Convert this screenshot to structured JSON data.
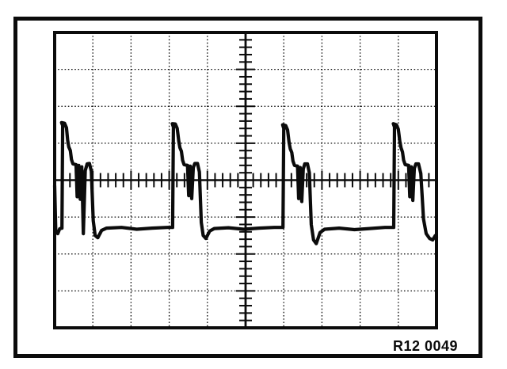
{
  "figure": {
    "label": "R12 0049",
    "background": "#ffffff",
    "ink_color": "#0b0b0b"
  },
  "chart_data": {
    "type": "line",
    "title": "",
    "xlabel": "",
    "ylabel": "",
    "x_range": [
      0,
      10
    ],
    "y_range": [
      0,
      8
    ],
    "grid": {
      "cols": 10,
      "rows": 8,
      "minor_per_div": 5,
      "style": "dotted",
      "center_axes": true
    },
    "legend": "none",
    "annotations": [
      {
        "text": "R12 0049",
        "position": "bottom-right"
      }
    ],
    "series": [
      {
        "name": "oscilloscope-trace",
        "units": "graticule divisions (x: 0-10 left to right, y: 0-8 top to bottom)",
        "points": [
          [
            0.0,
            4.15
          ],
          [
            0.03,
            5.4
          ],
          [
            0.08,
            5.45
          ],
          [
            0.13,
            5.32
          ],
          [
            0.18,
            5.3
          ],
          [
            0.19,
            5.3
          ],
          [
            0.21,
            2.52
          ],
          [
            0.18,
            2.44
          ],
          [
            0.26,
            2.46
          ],
          [
            0.31,
            2.58
          ],
          [
            0.34,
            2.92
          ],
          [
            0.37,
            3.1
          ],
          [
            0.41,
            3.2
          ],
          [
            0.44,
            3.44
          ],
          [
            0.48,
            3.56
          ],
          [
            0.56,
            3.58
          ],
          [
            0.59,
            4.45
          ],
          [
            0.63,
            3.6
          ],
          [
            0.67,
            4.52
          ],
          [
            0.71,
            3.64
          ],
          [
            0.75,
            5.45
          ],
          [
            0.8,
            3.74
          ],
          [
            0.85,
            3.56
          ],
          [
            0.91,
            3.55
          ],
          [
            0.96,
            3.76
          ],
          [
            1.01,
            5.1
          ],
          [
            1.06,
            5.5
          ],
          [
            1.13,
            5.56
          ],
          [
            1.23,
            5.36
          ],
          [
            1.36,
            5.3
          ],
          [
            1.75,
            5.28
          ],
          [
            2.15,
            5.33
          ],
          [
            2.55,
            5.3
          ],
          [
            2.95,
            5.28
          ],
          [
            3.09,
            5.28
          ],
          [
            3.11,
            2.56
          ],
          [
            3.08,
            2.47
          ],
          [
            3.16,
            2.48
          ],
          [
            3.21,
            2.6
          ],
          [
            3.25,
            2.95
          ],
          [
            3.28,
            3.12
          ],
          [
            3.32,
            3.22
          ],
          [
            3.35,
            3.46
          ],
          [
            3.39,
            3.58
          ],
          [
            3.48,
            3.6
          ],
          [
            3.51,
            4.42
          ],
          [
            3.55,
            3.62
          ],
          [
            3.59,
            4.5
          ],
          [
            3.63,
            3.66
          ],
          [
            3.67,
            3.55
          ],
          [
            3.74,
            3.55
          ],
          [
            3.79,
            3.78
          ],
          [
            3.84,
            5.15
          ],
          [
            3.89,
            5.5
          ],
          [
            3.96,
            5.58
          ],
          [
            4.06,
            5.38
          ],
          [
            4.18,
            5.31
          ],
          [
            4.55,
            5.29
          ],
          [
            4.95,
            5.33
          ],
          [
            5.35,
            5.3
          ],
          [
            5.75,
            5.28
          ],
          [
            5.95,
            5.28
          ],
          [
            5.98,
            5.28
          ],
          [
            6.0,
            2.6
          ],
          [
            5.97,
            2.5
          ],
          [
            6.05,
            2.52
          ],
          [
            6.1,
            2.64
          ],
          [
            6.14,
            2.98
          ],
          [
            6.17,
            3.15
          ],
          [
            6.21,
            3.25
          ],
          [
            6.24,
            3.48
          ],
          [
            6.28,
            3.6
          ],
          [
            6.36,
            3.62
          ],
          [
            6.39,
            4.5
          ],
          [
            6.43,
            3.66
          ],
          [
            6.47,
            4.58
          ],
          [
            6.51,
            3.7
          ],
          [
            6.55,
            3.56
          ],
          [
            6.62,
            3.56
          ],
          [
            6.67,
            3.8
          ],
          [
            6.72,
            5.2
          ],
          [
            6.78,
            5.62
          ],
          [
            6.85,
            5.72
          ],
          [
            6.95,
            5.42
          ],
          [
            7.07,
            5.33
          ],
          [
            7.45,
            5.3
          ],
          [
            7.85,
            5.34
          ],
          [
            8.25,
            5.31
          ],
          [
            8.65,
            5.28
          ],
          [
            8.85,
            5.28
          ],
          [
            8.88,
            5.28
          ],
          [
            8.9,
            2.56
          ],
          [
            8.87,
            2.47
          ],
          [
            8.95,
            2.5
          ],
          [
            9.0,
            2.62
          ],
          [
            9.04,
            2.95
          ],
          [
            9.07,
            3.12
          ],
          [
            9.11,
            3.24
          ],
          [
            9.14,
            3.46
          ],
          [
            9.18,
            3.58
          ],
          [
            9.27,
            3.6
          ],
          [
            9.3,
            4.45
          ],
          [
            9.34,
            3.64
          ],
          [
            9.38,
            4.55
          ],
          [
            9.42,
            3.68
          ],
          [
            9.46,
            3.56
          ],
          [
            9.53,
            3.56
          ],
          [
            9.59,
            3.82
          ],
          [
            9.66,
            5.05
          ],
          [
            9.73,
            5.45
          ],
          [
            9.82,
            5.58
          ],
          [
            9.9,
            5.62
          ],
          [
            9.97,
            5.5
          ],
          [
            10.0,
            5.54
          ]
        ]
      }
    ]
  }
}
